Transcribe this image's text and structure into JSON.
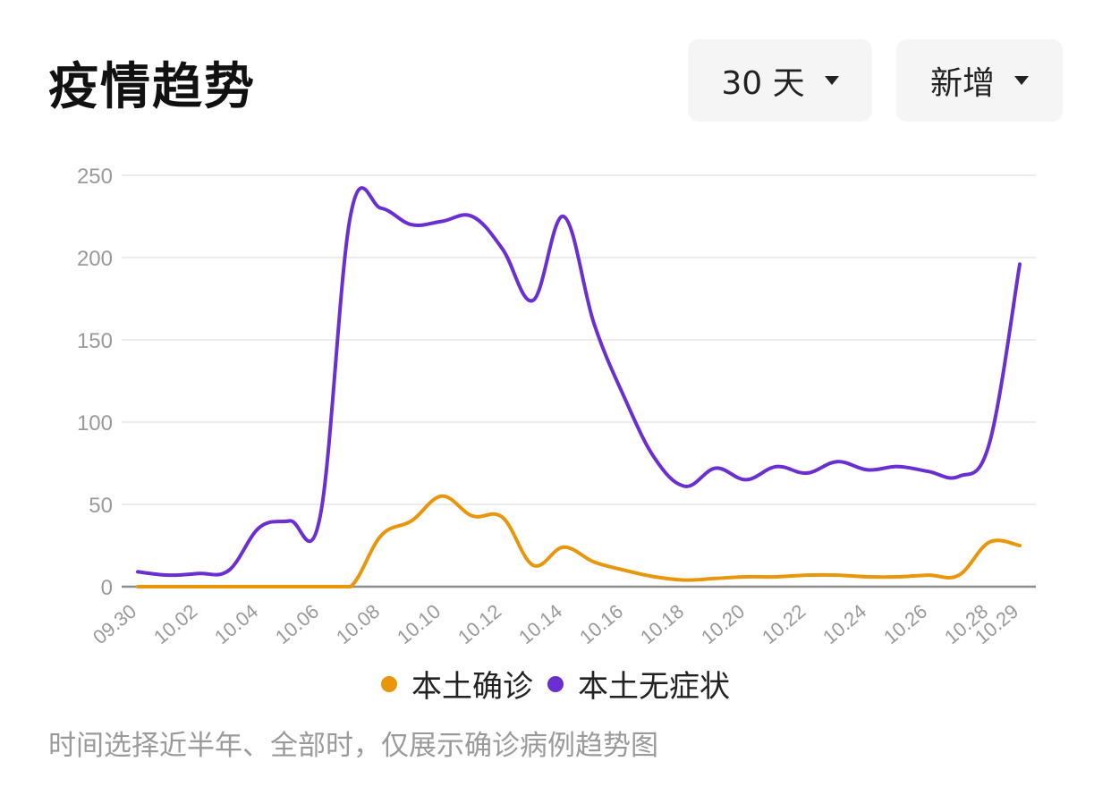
{
  "header": {
    "title": "疫情趋势",
    "range_dropdown": {
      "label": "30 天"
    },
    "metric_dropdown": {
      "label": "新增"
    }
  },
  "footnote": "时间选择近半年、全部时，仅展示确诊病例趋势图",
  "colors": {
    "confirmed": "#e8960c",
    "asymptomatic": "#6a2fd1",
    "grid": "#ececec",
    "axis": "#9a9a9a"
  },
  "chart_data": {
    "type": "line",
    "x_ticks": [
      "09.30",
      "10.02",
      "10.04",
      "10.06",
      "10.08",
      "10.10",
      "10.12",
      "10.14",
      "10.16",
      "10.18",
      "10.20",
      "10.22",
      "10.24",
      "10.26",
      "10.28",
      "10.29"
    ],
    "y_ticks": [
      0,
      50,
      100,
      150,
      200,
      250
    ],
    "ylim": [
      0,
      250
    ],
    "legend": "bottom",
    "grid": true,
    "x": [
      "09.30",
      "10.01",
      "10.02",
      "10.03",
      "10.04",
      "10.05",
      "10.06",
      "10.07",
      "10.08",
      "10.09",
      "10.10",
      "10.11",
      "10.12",
      "10.13",
      "10.14",
      "10.15",
      "10.16",
      "10.17",
      "10.18",
      "10.19",
      "10.20",
      "10.21",
      "10.22",
      "10.23",
      "10.24",
      "10.25",
      "10.26",
      "10.27",
      "10.28",
      "10.29"
    ],
    "series": [
      {
        "name": "本土确诊",
        "color_key": "confirmed",
        "values": [
          0,
          0,
          0,
          0,
          0,
          0,
          0,
          0,
          31,
          40,
          55,
          43,
          42,
          13,
          24,
          15,
          10,
          6,
          4,
          5,
          6,
          6,
          7,
          7,
          6,
          6,
          7,
          7,
          27,
          25
        ]
      },
      {
        "name": "本土无症状",
        "color_key": "asymptomatic",
        "values": [
          9,
          7,
          8,
          10,
          36,
          40,
          43,
          226,
          230,
          220,
          222,
          225,
          205,
          174,
          225,
          160,
          115,
          78,
          61,
          72,
          65,
          73,
          69,
          76,
          71,
          73,
          70,
          67,
          87,
          196
        ]
      }
    ]
  }
}
